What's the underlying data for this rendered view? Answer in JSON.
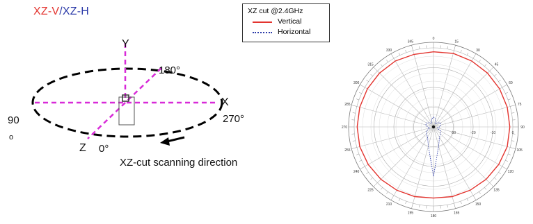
{
  "header": {
    "v": "XZ-V",
    "sep": "/",
    "h": "XZ-H"
  },
  "diagram": {
    "axis_y": "Y",
    "axis_x": "X",
    "axis_z": "Z",
    "deg_180": "180°",
    "deg_270": "270°",
    "deg_0": "0°",
    "deg_90": "90",
    "deg_90_sym": "o",
    "scan_label": "XZ-cut scanning direction"
  },
  "colors": {
    "vertical": "#e3342f",
    "horizontal": "#2b3aa8",
    "guide": "#d82bd8"
  },
  "chart_data": {
    "type": "polar",
    "title": "XZ cut @2.4GHz",
    "angle_ticks": [
      0,
      15,
      30,
      45,
      60,
      75,
      90,
      105,
      120,
      135,
      150,
      165,
      180,
      195,
      210,
      225,
      240,
      255,
      270,
      285,
      300,
      315,
      330,
      345
    ],
    "radial_range_dbi": [
      -40,
      0
    ],
    "radial_ticks": [
      -40,
      -30,
      -20,
      -10,
      0
    ],
    "series": [
      {
        "name": "Vertical",
        "style": "solid",
        "color": "#e3342f",
        "angles": [
          0,
          15,
          30,
          45,
          60,
          75,
          90,
          105,
          120,
          135,
          150,
          165,
          180,
          195,
          210,
          225,
          240,
          255,
          270,
          285,
          300,
          315,
          330,
          345
        ],
        "values_dbi": [
          -2,
          -1.5,
          -1.5,
          -1.5,
          -1.5,
          -1.5,
          -1.5,
          -1.5,
          -2,
          -2.5,
          -3,
          -3.5,
          -4,
          -3.5,
          -3,
          -2.5,
          -2,
          -1.5,
          -1.5,
          -1.5,
          -1.5,
          -1.5,
          -1.5,
          -2
        ]
      },
      {
        "name": "Horizontal",
        "style": "dotted",
        "color": "#2b3aa8",
        "angles": [
          0,
          15,
          30,
          45,
          60,
          75,
          90,
          105,
          120,
          135,
          150,
          165,
          180,
          195,
          210,
          225,
          240,
          255,
          270,
          285,
          300,
          315,
          330,
          345
        ],
        "values_dbi": [
          -35,
          -36,
          -38,
          -37,
          -36,
          -36,
          -37,
          -38,
          -36,
          -35,
          -34,
          -30,
          -15,
          -30,
          -34,
          -35,
          -36,
          -38,
          -37,
          -36,
          -36,
          -37,
          -38,
          -36
        ]
      }
    ]
  }
}
